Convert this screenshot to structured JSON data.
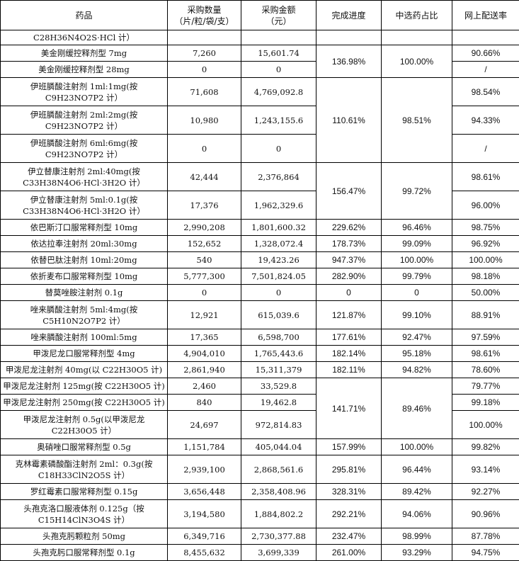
{
  "header": {
    "drug": "药品",
    "qty_line1": "采购数量",
    "qty_line2": "（片/粒/袋/支）",
    "amt_line1": "采购金额",
    "amt_line2": "（元）",
    "progress": "完成进度",
    "share": "中选药占比",
    "delivery": "网上配送率"
  },
  "rows": {
    "r0": {
      "drug": "C28H36N4O2S·HCl 计）"
    },
    "r1": {
      "drug": "美金刚缓控释剂型 7mg",
      "qty": "7,260",
      "amt": "15,601.74",
      "delivery": "90.66%"
    },
    "r2": {
      "drug": "美金刚缓控释剂型 28mg",
      "qty": "0",
      "amt": "0",
      "delivery": "/"
    },
    "g1": {
      "progress": "136.98%",
      "share": "100.00%"
    },
    "r3": {
      "drug_l1": "伊班膦酸注射剂 1ml:1mg(按",
      "drug_l2": "C9H23NO7P2 计）",
      "qty": "71,608",
      "amt": "4,769,092.8",
      "delivery": "98.54%"
    },
    "r4": {
      "drug_l1": "伊班膦酸注射剂 2ml:2mg(按",
      "drug_l2": "C9H23NO7P2 计）",
      "qty": "10,980",
      "amt": "1,243,155.6",
      "delivery": "94.33%"
    },
    "r5": {
      "drug_l1": "伊班膦酸注射剂 6ml:6mg(按",
      "drug_l2": "C9H23NO7P2 计）",
      "qty": "0",
      "amt": "0",
      "delivery": "/"
    },
    "g2": {
      "progress": "110.61%",
      "share": "98.51%"
    },
    "r6": {
      "drug_l1": "伊立替康注射剂 2ml:40mg(按",
      "drug_l2": "C33H38N4O6·HCl·3H2O 计）",
      "qty": "42,444",
      "amt": "2,376,864",
      "delivery": "98.61%"
    },
    "r7": {
      "drug_l1": "伊立替康注射剂 5ml:0.1g(按",
      "drug_l2": "C33H38N4O6·HCl·3H2O 计）",
      "qty": "17,376",
      "amt": "1,962,329.6",
      "delivery": "96.00%"
    },
    "g3": {
      "progress": "156.47%",
      "share": "99.72%"
    },
    "r8": {
      "drug": "依巴斯汀口服常释剂型 10mg",
      "qty": "2,990,208",
      "amt": "1,801,600.32",
      "progress": "229.62%",
      "share": "96.46%",
      "delivery": "98.75%"
    },
    "r9": {
      "drug": "依达拉奉注射剂 20ml:30mg",
      "qty": "152,652",
      "amt": "1,328,072.4",
      "progress": "178.73%",
      "share": "99.09%",
      "delivery": "96.92%"
    },
    "r10": {
      "drug": "依替巴肽注射剂 10ml:20mg",
      "qty": "540",
      "amt": "19,423.26",
      "progress": "947.37%",
      "share": "100.00%",
      "delivery": "100.00%"
    },
    "r11": {
      "drug": "依折麦布口服常释剂型 10mg",
      "qty": "5,777,300",
      "amt": "7,501,824.05",
      "progress": "282.90%",
      "share": "99.79%",
      "delivery": "98.18%"
    },
    "r12": {
      "drug": "替莫唑胺注射剂 0.1g",
      "qty": "0",
      "amt": "0",
      "progress": "0",
      "share": "0",
      "delivery": "50.00%"
    },
    "r13": {
      "drug_l1": "唑来膦酸注射剂 5ml:4mg(按",
      "drug_l2": "C5H10N2O7P2 计）",
      "qty": "12,921",
      "amt": "615,039.6",
      "progress": "121.87%",
      "share": "99.10%",
      "delivery": "88.91%"
    },
    "r14": {
      "drug": "唑来膦酸注射剂 100ml:5mg",
      "qty": "17,365",
      "amt": "6,598,700",
      "progress": "177.61%",
      "share": "92.47%",
      "delivery": "97.59%"
    },
    "r15": {
      "drug": "甲泼尼龙口服常释剂型 4mg",
      "qty": "4,904,010",
      "amt": "1,765,443.6",
      "progress": "182.14%",
      "share": "95.18%",
      "delivery": "98.61%"
    },
    "r16": {
      "drug": "甲泼尼龙注射剂 40mg(以 C22H30O5 计)",
      "qty": "2,861,940",
      "amt": "15,311,379",
      "progress": "182.11%",
      "share": "94.82%",
      "delivery": "78.60%"
    },
    "r17": {
      "drug": "甲泼尼龙注射剂 125mg(按 C22H30O5 计)",
      "qty": "2,460",
      "amt": "33,529.8",
      "delivery": "79.77%"
    },
    "r18": {
      "drug": "甲泼尼龙注射剂 250mg(按 C22H30O5 计)",
      "qty": "840",
      "amt": "19,462.8",
      "delivery": "99.18%"
    },
    "r19": {
      "drug_l1": "甲泼尼龙注射剂 0.5g(以甲泼尼龙",
      "drug_l2": "C22H30O5 计）",
      "qty": "24,697",
      "amt": "972,814.83",
      "delivery": "100.00%"
    },
    "g4": {
      "progress": "141.71%",
      "share": "89.46%"
    },
    "r20": {
      "drug": "奥硝唑口服常释剂型 0.5g",
      "qty": "1,151,784",
      "amt": "405,044.04",
      "progress": "157.99%",
      "share": "100.00%",
      "delivery": "99.82%"
    },
    "r21": {
      "drug_l1": "克林霉素磷酸酯注射剂 2ml：0.3g(按",
      "drug_l2": "C18H33ClN2O5S 计）",
      "qty": "2,939,100",
      "amt": "2,868,561.6",
      "progress": "295.81%",
      "share": "96.44%",
      "delivery": "93.14%"
    },
    "r22": {
      "drug": "罗红霉素口服常释剂型 0.15g",
      "qty": "3,656,448",
      "amt": "2,358,408.96",
      "progress": "328.31%",
      "share": "89.42%",
      "delivery": "92.27%"
    },
    "r23": {
      "drug_l1": "头孢克洛口服液体剂 0.125g（按",
      "drug_l2": "C15H14ClN3O4S 计）",
      "qty": "3,194,580",
      "amt": "1,884,802.2",
      "progress": "292.21%",
      "share": "94.06%",
      "delivery": "90.96%"
    },
    "r24": {
      "drug": "头孢克肟颗粒剂 50mg",
      "qty": "6,349,716",
      "amt": "2,730,377.88",
      "progress": "232.47%",
      "share": "98.99%",
      "delivery": "87.78%"
    },
    "r25": {
      "drug": "头孢克肟口服常释剂型 0.1g",
      "qty": "8,455,632",
      "amt": "3,699,339",
      "progress": "261.00%",
      "share": "93.29%",
      "delivery": "94.75%"
    }
  }
}
